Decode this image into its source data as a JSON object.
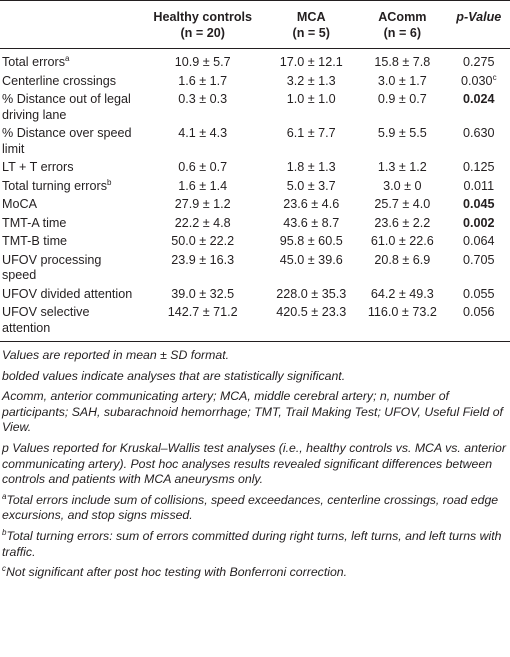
{
  "table": {
    "headers": [
      {
        "line1": "",
        "line2": ""
      },
      {
        "line1": "Healthy controls",
        "line2": "(n = 20)"
      },
      {
        "line1": "MCA",
        "line2": "(n = 5)"
      },
      {
        "line1": "AComm",
        "line2": "(n = 6)"
      },
      {
        "line1": "p-Value",
        "line2": ""
      }
    ],
    "rows": [
      {
        "variable": "Total errors",
        "sup": "a",
        "healthy": "10.9 ± 5.7",
        "mca": "17.0 ± 12.1",
        "acomm": "15.8 ± 7.8",
        "p": "0.275",
        "p_sup": "",
        "bold": false
      },
      {
        "variable": "Centerline crossings",
        "sup": "",
        "healthy": "1.6 ± 1.7",
        "mca": "3.2 ± 1.3",
        "acomm": "3.0 ± 1.7",
        "p": "0.030",
        "p_sup": "c",
        "bold": false
      },
      {
        "variable": "% Distance out of legal driving lane",
        "sup": "",
        "healthy": "0.3 ± 0.3",
        "mca": "1.0 ± 1.0",
        "acomm": "0.9 ± 0.7",
        "p": "0.024",
        "p_sup": "",
        "bold": true
      },
      {
        "variable": "% Distance over speed limit",
        "sup": "",
        "healthy": "4.1 ± 4.3",
        "mca": "6.1 ± 7.7",
        "acomm": "5.9 ± 5.5",
        "p": "0.630",
        "p_sup": "",
        "bold": false
      },
      {
        "variable": "LT + T errors",
        "sup": "",
        "healthy": "0.6 ± 0.7",
        "mca": "1.8 ± 1.3",
        "acomm": "1.3 ± 1.2",
        "p": "0.125",
        "p_sup": "",
        "bold": false
      },
      {
        "variable": "Total turning errors",
        "sup": "b",
        "healthy": "1.6 ± 1.4",
        "mca": "5.0 ± 3.7",
        "acomm": "3.0 ± 0",
        "p": "0.011",
        "p_sup": "",
        "bold": false
      },
      {
        "variable": "MoCA",
        "sup": "",
        "healthy": "27.9 ± 1.2",
        "mca": "23.6 ± 4.6",
        "acomm": "25.7 ± 4.0",
        "p": "0.045",
        "p_sup": "",
        "bold": true
      },
      {
        "variable": "TMT-A time",
        "sup": "",
        "healthy": "22.2 ± 4.8",
        "mca": "43.6 ± 8.7",
        "acomm": "23.6 ± 2.2",
        "p": "0.002",
        "p_sup": "",
        "bold": true
      },
      {
        "variable": "TMT-B time",
        "sup": "",
        "healthy": "50.0 ± 22.2",
        "mca": "95.8 ± 60.5",
        "acomm": "61.0 ± 22.6",
        "p": "0.064",
        "p_sup": "",
        "bold": false
      },
      {
        "variable": "UFOV processing speed",
        "sup": "",
        "healthy": "23.9 ± 16.3",
        "mca": "45.0 ± 39.6",
        "acomm": "20.8 ± 6.9",
        "p": "0.705",
        "p_sup": "",
        "bold": false
      },
      {
        "variable": "UFOV divided attention",
        "sup": "",
        "healthy": "39.0 ± 32.5",
        "mca": "228.0 ± 35.3",
        "acomm": "64.2 ± 49.3",
        "p": "0.055",
        "p_sup": "",
        "bold": false
      },
      {
        "variable": "UFOV selective attention",
        "sup": "",
        "healthy": "142.7 ± 71.2",
        "mca": "420.5 ± 23.3",
        "acomm": "116.0 ± 73.2",
        "p": "0.056",
        "p_sup": "",
        "bold": false
      }
    ]
  },
  "footnotes": [
    {
      "sup": "",
      "text": "Values are reported in mean ± SD format."
    },
    {
      "sup": "",
      "text": "bolded values indicate analyses that are statistically significant."
    },
    {
      "sup": "",
      "text": "Acomm, anterior communicating artery; MCA, middle cerebral artery; n, number of participants; SAH, subarachnoid hemorrhage; TMT, Trail Making Test; UFOV, Useful Field of View."
    },
    {
      "sup": "",
      "text": "p Values reported for Kruskal–Wallis test analyses (i.e., healthy controls vs. MCA vs. anterior communicating artery). Post hoc analyses results revealed significant differences between controls and patients with MCA aneurysms only."
    },
    {
      "sup": "a",
      "text": "Total errors include sum of collisions, speed exceedances, centerline crossings, road edge excursions, and stop signs missed."
    },
    {
      "sup": "b",
      "text": "Total turning errors: sum of errors committed during right turns, left turns, and left turns with traffic."
    },
    {
      "sup": "c",
      "text": "Not significant after post hoc testing with Bonferroni correction."
    }
  ]
}
